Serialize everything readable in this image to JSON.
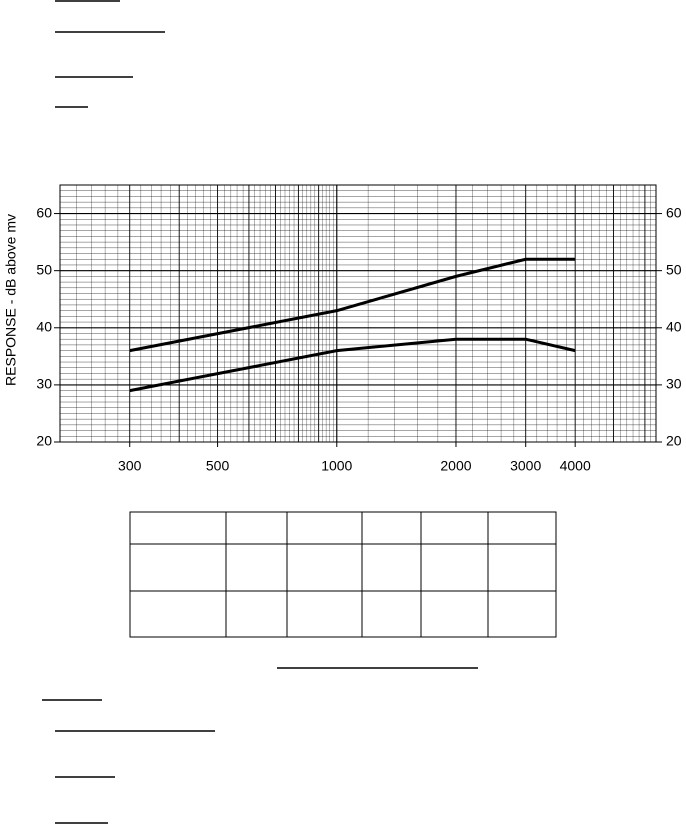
{
  "chart_data": {
    "type": "line",
    "y_label": "RESPONSE  -  dB above  mv",
    "log_x": true,
    "x": [
      300,
      1000,
      2000,
      3000,
      4000
    ],
    "series": [
      {
        "color": "#000000",
        "values": [
          36,
          43,
          49,
          52,
          52
        ]
      },
      {
        "color": "#000000",
        "values": [
          29,
          36,
          38,
          38,
          36
        ]
      }
    ],
    "xlim": [
      200,
      6400
    ],
    "ylim": [
      20,
      65
    ],
    "xticks": [
      300,
      500,
      1000,
      2000,
      3000,
      4000
    ],
    "yticks": [
      20,
      30,
      40,
      50,
      60
    ],
    "y2ticks": [
      20,
      30,
      40,
      50,
      60
    ],
    "grid": true
  }
}
